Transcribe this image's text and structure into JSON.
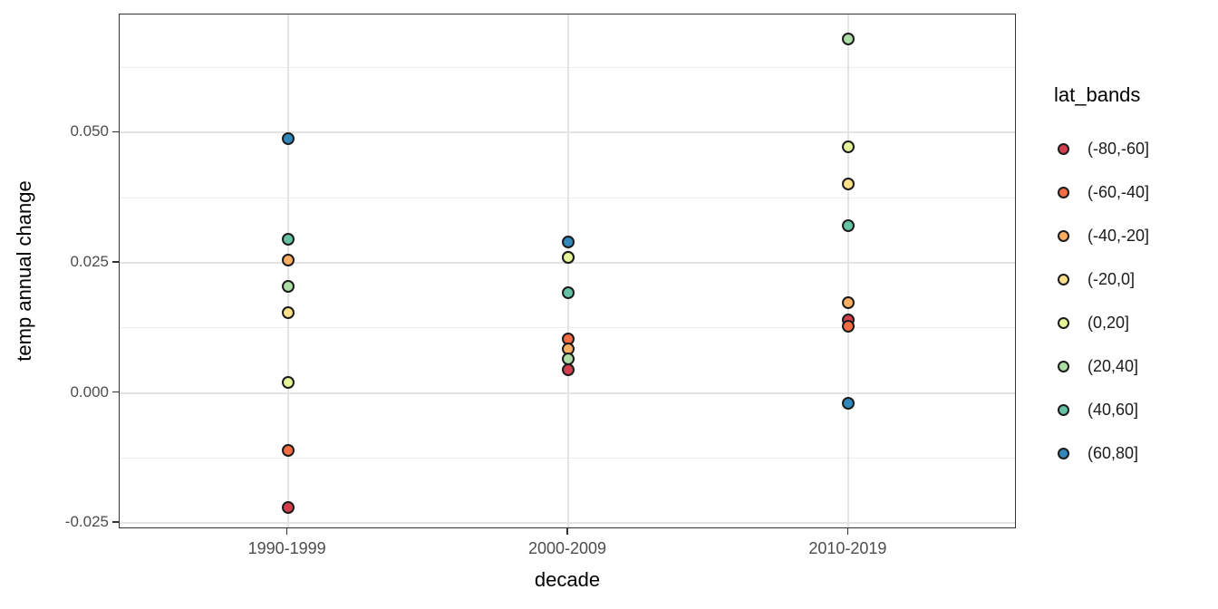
{
  "chart_data": {
    "type": "scatter",
    "title": "",
    "xlabel": "decade",
    "ylabel": "temp annual change",
    "categories": [
      "1990-1999",
      "2000-2009",
      "2010-2019"
    ],
    "y_ticks": [
      -0.025,
      0.0,
      0.025,
      0.05
    ],
    "y_tick_labels": [
      "-0.025",
      "0.000",
      "0.025",
      "0.050"
    ],
    "y_minor_ticks": [
      -0.0125,
      0.0125,
      0.0375,
      0.0625
    ],
    "ylim": [
      -0.0262,
      0.0727
    ],
    "grid": true,
    "legend_title": "lat_bands",
    "legend_position": "right",
    "series": [
      {
        "name": "(-80,-60]",
        "color": "#d53e4f",
        "values": [
          -0.022,
          0.0045,
          0.014
        ]
      },
      {
        "name": "(-60,-40]",
        "color": "#f46d43",
        "values": [
          -0.011,
          0.0104,
          0.0128
        ]
      },
      {
        "name": "(-40,-20]",
        "color": "#fdae61",
        "values": [
          0.0255,
          0.0084,
          0.0173
        ]
      },
      {
        "name": "(-20,0]",
        "color": "#fee08b",
        "values": [
          0.0155,
          0.026,
          0.0402
        ]
      },
      {
        "name": "(0,20]",
        "color": "#e6f598",
        "values": [
          0.002,
          0.026,
          0.0473
        ]
      },
      {
        "name": "(20,40]",
        "color": "#abdda4",
        "values": [
          0.0205,
          0.0066,
          0.068
        ]
      },
      {
        "name": "(40,60]",
        "color": "#66c2a5",
        "values": [
          0.0295,
          0.0193,
          0.0321
        ]
      },
      {
        "name": "(60,80]",
        "color": "#3288bd",
        "values": [
          0.0488,
          0.029,
          -0.002
        ]
      }
    ],
    "colors": {
      "background": "#ffffff",
      "panel_border": "#333333",
      "grid_major": "#e4e4e4",
      "grid_minor": "#ededed",
      "tick_label": "#4d4d4d",
      "axis_title": "#000000",
      "point_stroke": "#1c1c1c"
    }
  }
}
